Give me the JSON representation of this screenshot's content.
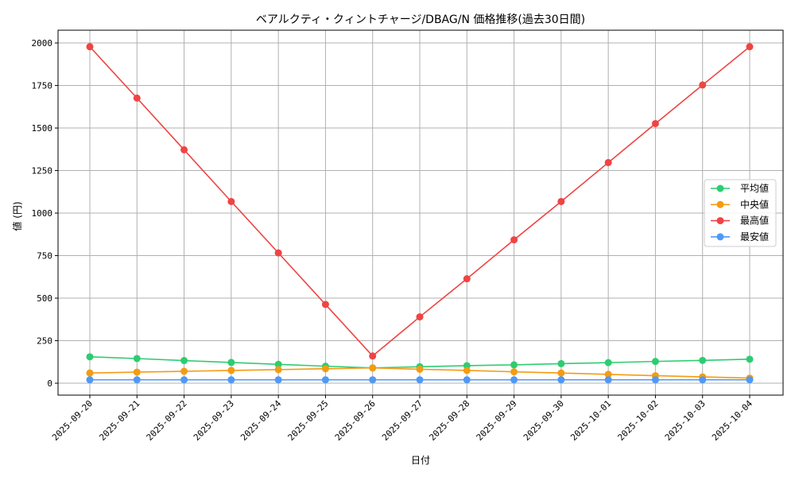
{
  "chart_data": {
    "type": "line",
    "title": "ベアルクティ・クィントチャージ/DBAG/N 価格推移(過去30日間)",
    "xlabel": "日付",
    "ylabel": "値 (円)",
    "x": [
      "2025-09-20",
      "2025-09-21",
      "2025-09-22",
      "2025-09-23",
      "2025-09-24",
      "2025-09-25",
      "2025-09-26",
      "2025-09-27",
      "2025-09-28",
      "2025-09-29",
      "2025-09-30",
      "2025-10-01",
      "2025-10-02",
      "2025-10-03",
      "2025-10-04"
    ],
    "ylim": [
      -70,
      2075
    ],
    "yticks": [
      0,
      250,
      500,
      750,
      1000,
      1250,
      1500,
      1750,
      2000
    ],
    "grid": true,
    "legend_position": "center-right",
    "series": [
      {
        "name": "平均値",
        "color": "#2ecc71",
        "values": [
          155,
          145,
          133,
          122,
          111,
          100,
          90,
          97,
          103,
          108,
          115,
          121,
          128,
          134,
          141
        ]
      },
      {
        "name": "中央値",
        "color": "#f39c12",
        "values": [
          60,
          65,
          70,
          75,
          80,
          85,
          90,
          82,
          75,
          67,
          60,
          52,
          44,
          37,
          30
        ]
      },
      {
        "name": "最高値",
        "color": "#ef4444",
        "values": [
          1978,
          1676,
          1372,
          1068,
          766,
          463,
          160,
          390,
          614,
          843,
          1068,
          1297,
          1526,
          1753,
          1978
        ]
      },
      {
        "name": "最安値",
        "color": "#4f99f5",
        "values": [
          20,
          20,
          20,
          20,
          20,
          20,
          20,
          20,
          20,
          20,
          20,
          20,
          20,
          20,
          20
        ]
      }
    ]
  }
}
